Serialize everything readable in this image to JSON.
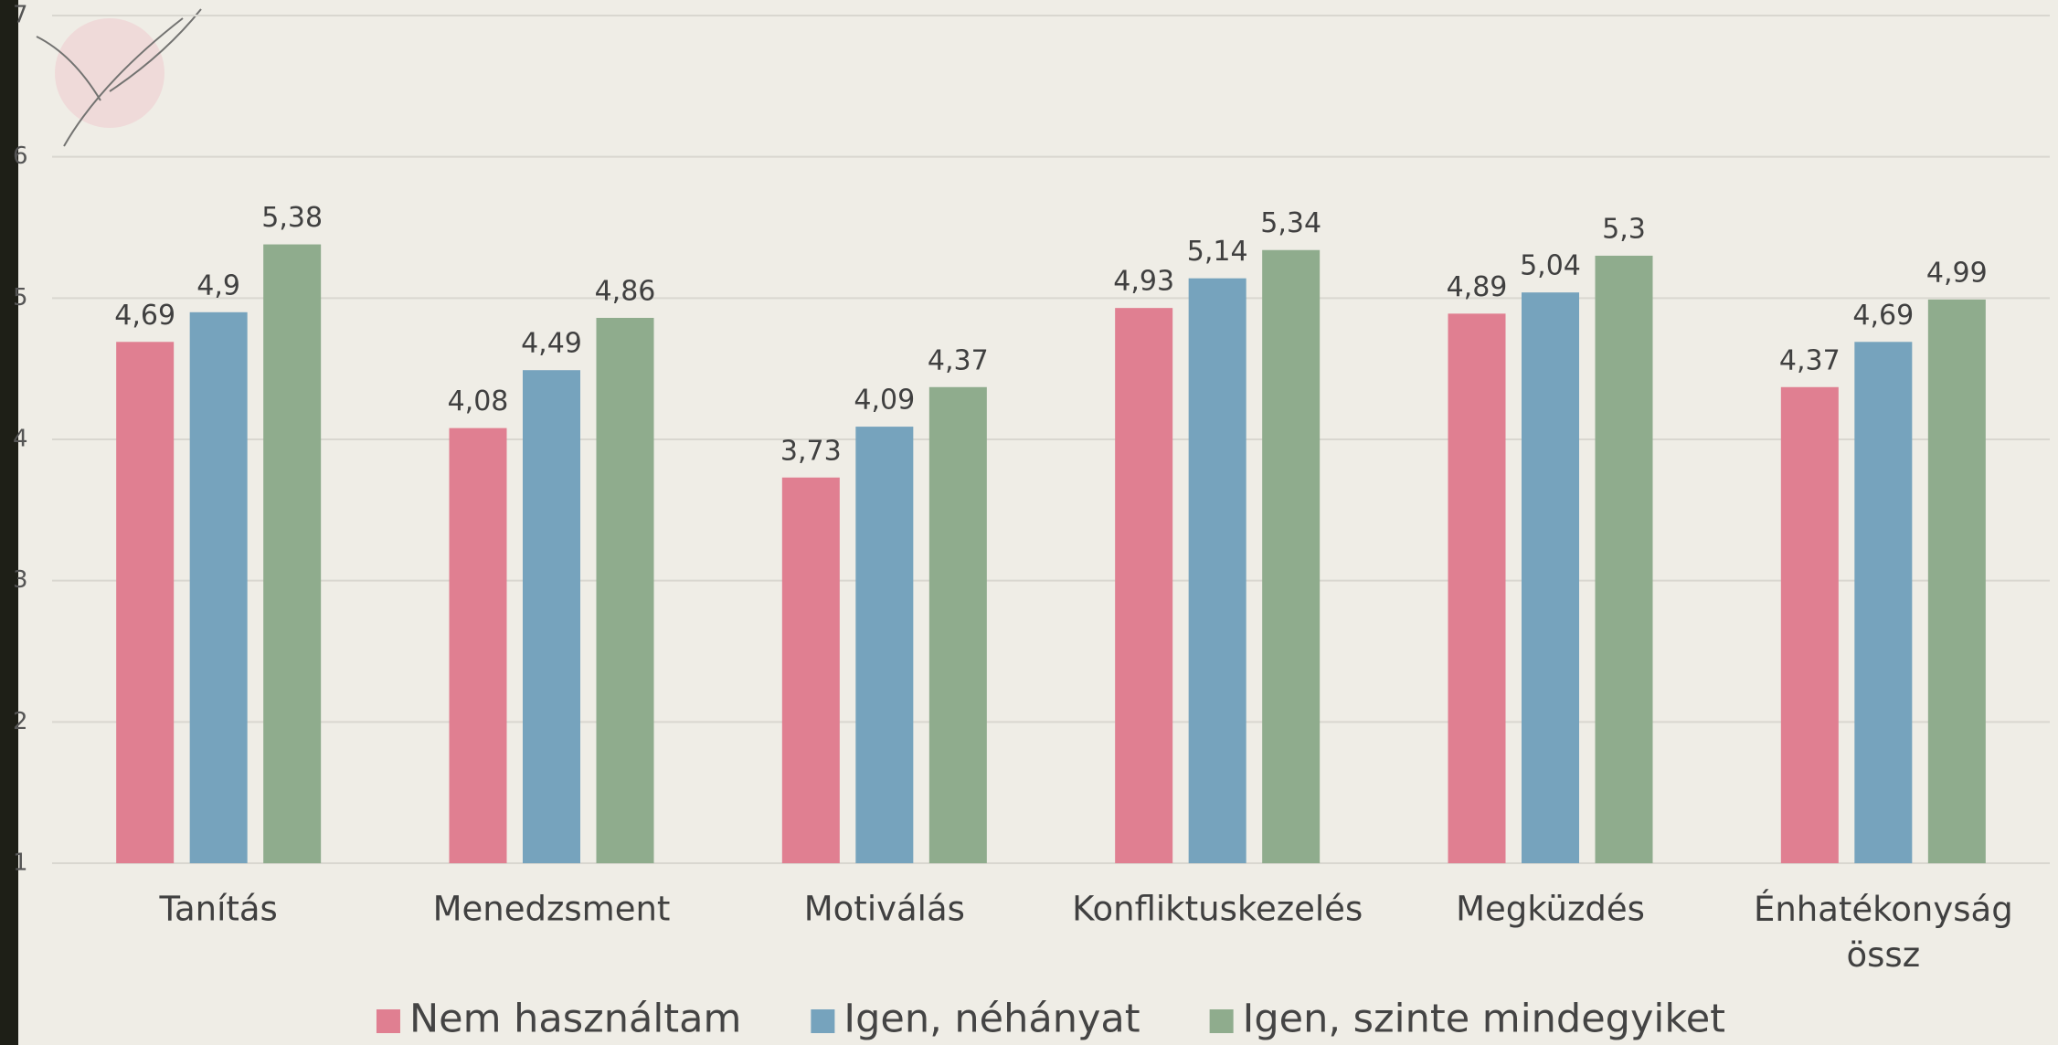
{
  "chart_data": {
    "type": "bar",
    "categories": [
      "Tanítás",
      "Menedzsment",
      "Motiválás",
      "Konfliktuskezelés",
      "Megküzdés",
      "Énhatékonyság össz"
    ],
    "series": [
      {
        "name": "Nem használtam",
        "color": "#e07f91",
        "values": [
          4.69,
          4.08,
          3.73,
          4.93,
          4.89,
          4.37
        ],
        "value_labels": [
          "4,69",
          "4,08",
          "3,73",
          "4,93",
          "4,89",
          "4,37"
        ]
      },
      {
        "name": "Igen, néhányat",
        "color": "#76a3bd",
        "values": [
          4.9,
          4.49,
          4.09,
          5.14,
          5.04,
          4.69
        ],
        "value_labels": [
          "4,9",
          "4,49",
          "4,09",
          "5,14",
          "5,04",
          "4,69"
        ]
      },
      {
        "name": "Igen, szinte mindegyiket",
        "color": "#8fac8d",
        "values": [
          5.38,
          4.86,
          4.37,
          5.34,
          5.3,
          4.99
        ],
        "value_labels": [
          "5,38",
          "4,86",
          "4,37",
          "5,34",
          "5,3",
          "4,99"
        ]
      }
    ],
    "ylim": [
      1,
      7
    ],
    "yticks": [
      1,
      2,
      3,
      4,
      5,
      6,
      7
    ],
    "grid": true,
    "legend": "bottom"
  }
}
